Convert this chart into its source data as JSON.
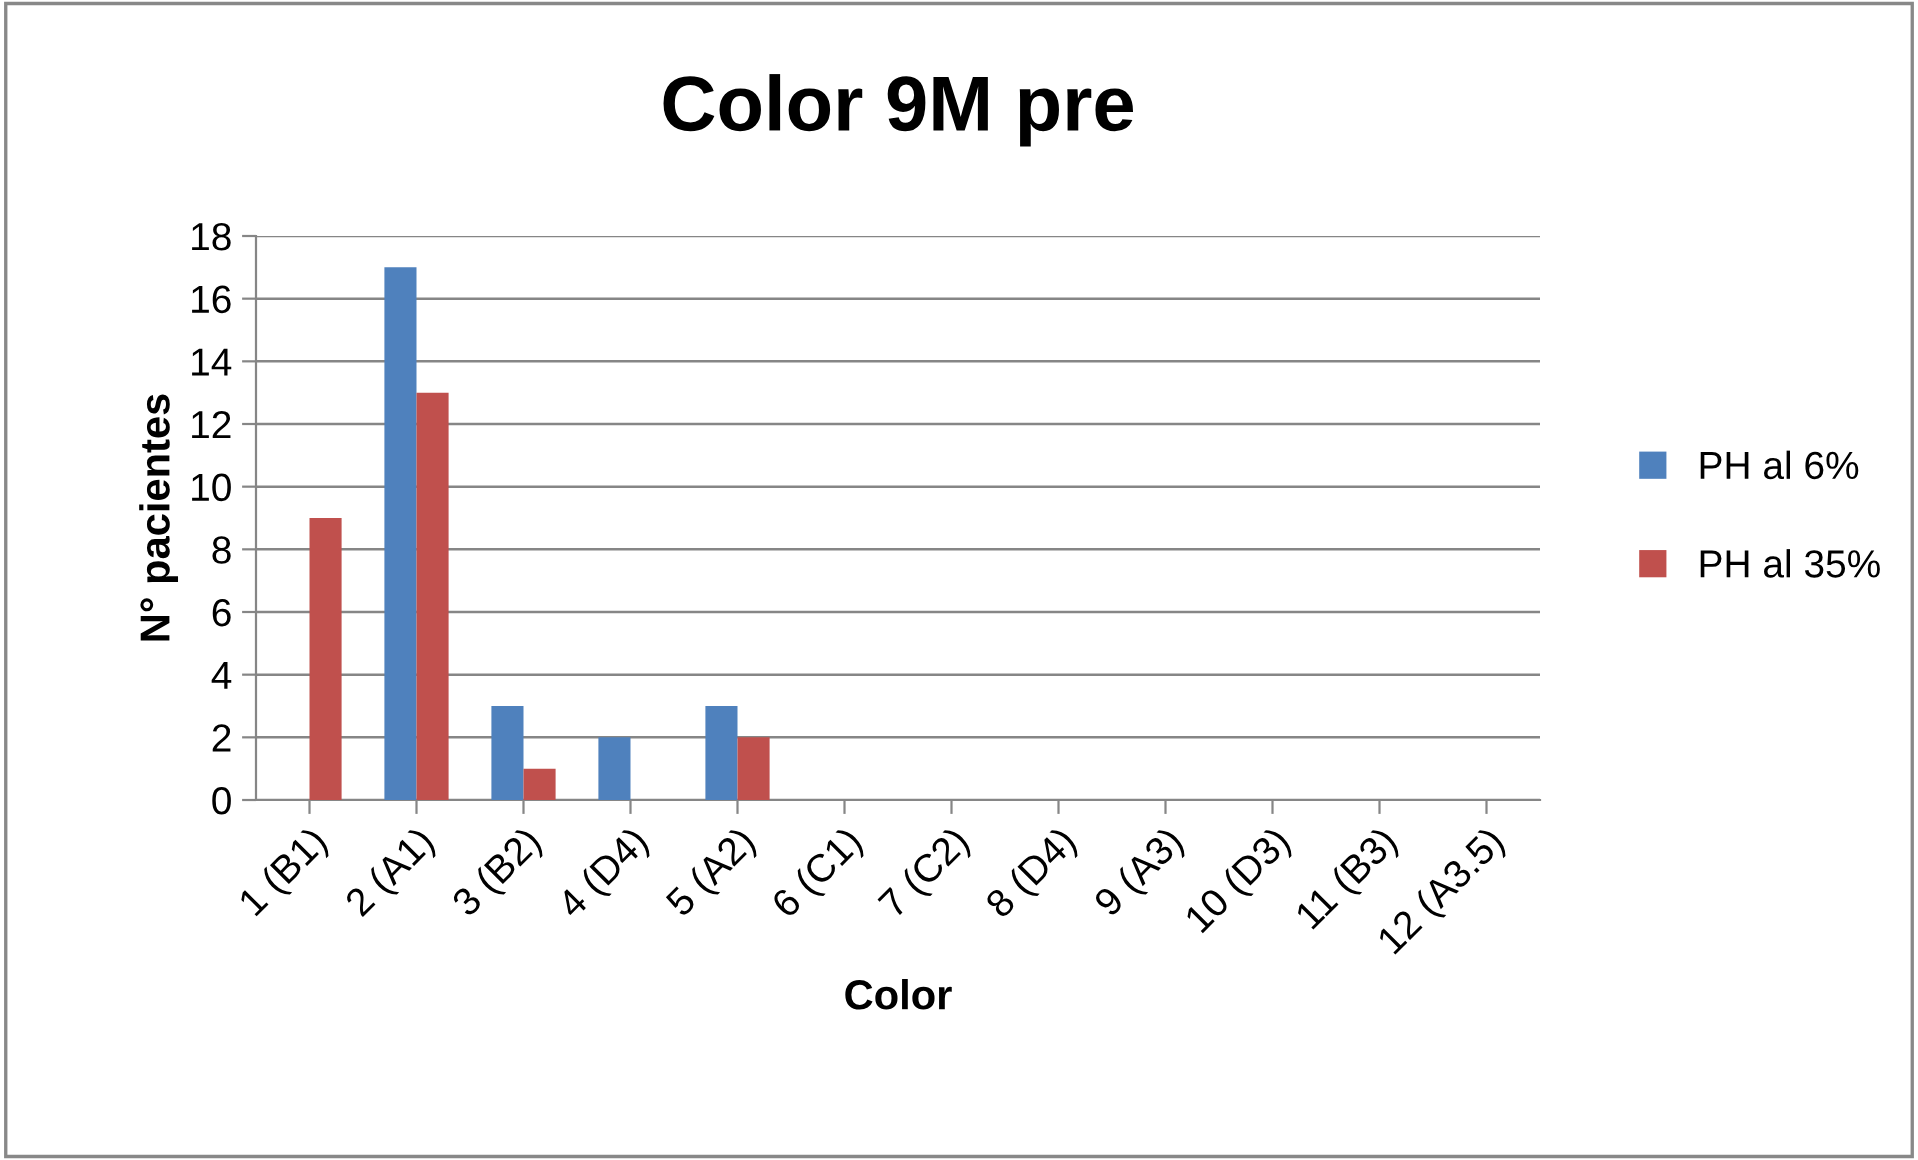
{
  "chart_data": {
    "type": "bar",
    "title": "Color 9M pre",
    "xlabel": "Color",
    "ylabel": "N° pacientes",
    "categories": [
      "1 (B1)",
      "2 (A1)",
      "3 (B2)",
      "4 (D4)",
      "5 (A2)",
      "6 (C1)",
      "7 (C2)",
      "8 (D4)",
      "9 (A3)",
      "10 (D3)",
      "11 (B3)",
      "12 (A3.5)"
    ],
    "series": [
      {
        "name": "PH al 6%",
        "color": "#4f81bd",
        "values": [
          0,
          17,
          3,
          2,
          3,
          0,
          0,
          0,
          0,
          0,
          0,
          0
        ]
      },
      {
        "name": "PH al 35%",
        "color": "#c0504d",
        "values": [
          9,
          13,
          1,
          0,
          2,
          0,
          0,
          0,
          0,
          0,
          0,
          0
        ]
      }
    ],
    "ylim": [
      0,
      18
    ],
    "yticks": [
      0,
      2,
      4,
      6,
      8,
      10,
      12,
      14,
      16,
      18
    ],
    "grid": "y",
    "legend": "right"
  }
}
